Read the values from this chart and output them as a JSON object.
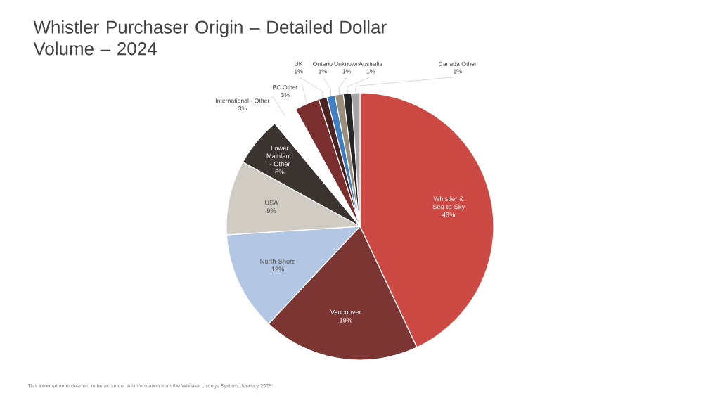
{
  "chart_data": {
    "type": "pie",
    "title": "Whistler Purchaser Origin – Detailed Dollar Volume – 2024",
    "categories": [
      "Whistler & Sea to Sky",
      "Vancouver",
      "North Shore",
      "USA",
      "Lower Mainland - Other",
      "International - Other",
      "BC Other",
      "UK",
      "Ontario",
      "Unknown",
      "Australia",
      "Canada Other"
    ],
    "values": [
      43,
      19,
      12,
      9,
      6,
      3,
      3,
      1,
      1,
      1,
      1,
      1
    ],
    "colors": [
      "#cc4a43",
      "#7b3533",
      "#b3c6e3",
      "#d0cbc3",
      "#3a3330",
      "#ffffff",
      "#7a2e2e",
      "#4a2222",
      "#3f7fc4",
      "#9a8d7c",
      "#262626",
      "#a6a6a6"
    ],
    "value_labels": [
      "43%",
      "19%",
      "12%",
      "9%",
      "6%",
      "3%",
      "3%",
      "1%",
      "1%",
      "1%",
      "1%",
      "1%"
    ],
    "annotations": [
      "This information is deemed to be accurate. All information from the Whistler Listings System, January 2025."
    ]
  }
}
